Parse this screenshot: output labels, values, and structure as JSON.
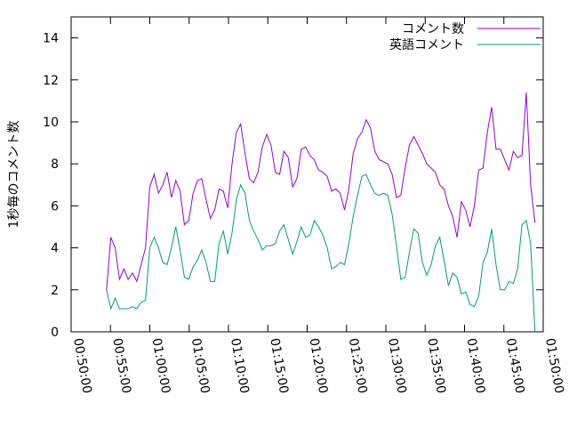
{
  "chart_data": {
    "type": "line",
    "ylabel": "1秒毎のコメント数",
    "xlim": [
      "00:50:00",
      "01:50:00"
    ],
    "xticks": [
      "00:50:00",
      "00:55:00",
      "01:00:00",
      "01:05:00",
      "01:10:00",
      "01:15:00",
      "01:20:00",
      "01:25:00",
      "01:30:00",
      "01:35:00",
      "01:40:00",
      "01:45:00",
      "01:50:00"
    ],
    "ylim": [
      0,
      15
    ],
    "yticks": [
      0,
      2,
      4,
      6,
      8,
      10,
      12,
      14
    ],
    "grid": false,
    "legend": "top-right",
    "x": [
      "00:54:30",
      "00:55:03",
      "00:55:36",
      "00:56:09",
      "00:56:42",
      "00:57:15",
      "00:57:48",
      "00:58:21",
      "00:58:54",
      "00:59:27",
      "01:00:00",
      "01:00:33",
      "01:01:06",
      "01:01:39",
      "01:02:12",
      "01:02:45",
      "01:03:18",
      "01:03:51",
      "01:04:24",
      "01:04:57",
      "01:05:30",
      "01:06:03",
      "01:06:36",
      "01:07:09",
      "01:07:42",
      "01:08:15",
      "01:08:48",
      "01:09:21",
      "01:09:54",
      "01:10:27",
      "01:11:00",
      "01:11:33",
      "01:12:06",
      "01:12:39",
      "01:13:12",
      "01:13:45",
      "01:14:18",
      "01:14:51",
      "01:15:24",
      "01:15:57",
      "01:16:30",
      "01:17:03",
      "01:17:36",
      "01:18:09",
      "01:18:42",
      "01:19:15",
      "01:19:48",
      "01:20:21",
      "01:20:54",
      "01:21:27",
      "01:22:00",
      "01:22:33",
      "01:23:06",
      "01:23:39",
      "01:24:12",
      "01:24:45",
      "01:25:18",
      "01:25:51",
      "01:26:24",
      "01:26:57",
      "01:27:30",
      "01:28:03",
      "01:28:36",
      "01:29:09",
      "01:29:42",
      "01:30:15",
      "01:30:48",
      "01:31:21",
      "01:31:54",
      "01:32:27",
      "01:33:00",
      "01:33:33",
      "01:34:06",
      "01:34:39",
      "01:35:12",
      "01:35:45",
      "01:36:18",
      "01:36:51",
      "01:37:24",
      "01:37:57",
      "01:38:30",
      "01:39:03",
      "01:39:36",
      "01:40:09",
      "01:40:42",
      "01:41:15",
      "01:41:48",
      "01:42:21",
      "01:42:54",
      "01:43:27",
      "01:44:00",
      "01:44:33",
      "01:45:06",
      "01:45:39",
      "01:46:12",
      "01:46:45",
      "01:47:18",
      "01:47:51",
      "01:48:24",
      "01:48:57"
    ],
    "series": [
      {
        "name": "コメント数",
        "color": "#9400d3",
        "values": [
          2.0,
          4.5,
          4.0,
          2.5,
          3.0,
          2.5,
          2.8,
          2.4,
          3.2,
          4.0,
          6.9,
          7.5,
          6.6,
          7.0,
          7.6,
          6.4,
          7.2,
          6.7,
          5.1,
          5.3,
          6.6,
          7.2,
          7.3,
          6.3,
          5.4,
          5.8,
          6.8,
          6.7,
          5.9,
          8.0,
          9.5,
          9.9,
          8.5,
          7.3,
          7.1,
          7.6,
          8.8,
          9.4,
          8.9,
          7.6,
          7.5,
          8.6,
          8.3,
          6.9,
          7.3,
          8.7,
          8.8,
          8.4,
          8.2,
          7.7,
          7.6,
          7.4,
          6.7,
          6.8,
          6.6,
          5.8,
          6.8,
          8.5,
          9.2,
          9.5,
          10.1,
          9.7,
          8.6,
          8.2,
          8.1,
          8.0,
          7.5,
          6.4,
          6.5,
          7.8,
          8.9,
          9.3,
          8.9,
          8.5,
          8.0,
          7.8,
          7.6,
          7.0,
          6.8,
          6.0,
          5.5,
          4.5,
          6.2,
          5.8,
          5.0,
          6.0,
          7.7,
          7.8,
          9.5,
          10.7,
          8.7,
          8.7,
          8.2,
          7.7,
          8.6,
          8.3,
          8.4,
          11.4,
          7.0,
          5.2
        ]
      },
      {
        "name": "英語コメント",
        "color": "#009e73",
        "values": [
          2.0,
          1.1,
          1.6,
          1.1,
          1.1,
          1.1,
          1.2,
          1.1,
          1.4,
          1.5,
          4.0,
          4.5,
          4.0,
          3.3,
          3.2,
          4.0,
          5.0,
          3.9,
          2.6,
          2.5,
          3.1,
          3.4,
          3.9,
          3.3,
          2.4,
          2.4,
          4.2,
          4.8,
          3.7,
          4.7,
          6.3,
          7.0,
          6.6,
          5.3,
          4.8,
          4.4,
          3.9,
          4.1,
          4.1,
          4.2,
          4.8,
          5.1,
          4.4,
          3.7,
          4.3,
          5.0,
          4.5,
          4.6,
          5.3,
          5.0,
          4.6,
          4.0,
          3.0,
          3.1,
          3.3,
          3.2,
          4.2,
          5.5,
          6.5,
          7.4,
          7.5,
          7.0,
          6.6,
          6.5,
          6.6,
          6.5,
          5.6,
          4.1,
          2.5,
          2.6,
          3.8,
          4.9,
          4.7,
          3.3,
          2.7,
          3.2,
          4.1,
          4.5,
          3.4,
          2.2,
          2.8,
          2.6,
          1.8,
          1.9,
          1.3,
          1.2,
          1.7,
          3.3,
          3.8,
          4.9,
          3.2,
          2.0,
          2.0,
          2.4,
          2.3,
          3.0,
          5.1,
          5.3,
          4.2,
          0
        ]
      }
    ]
  }
}
